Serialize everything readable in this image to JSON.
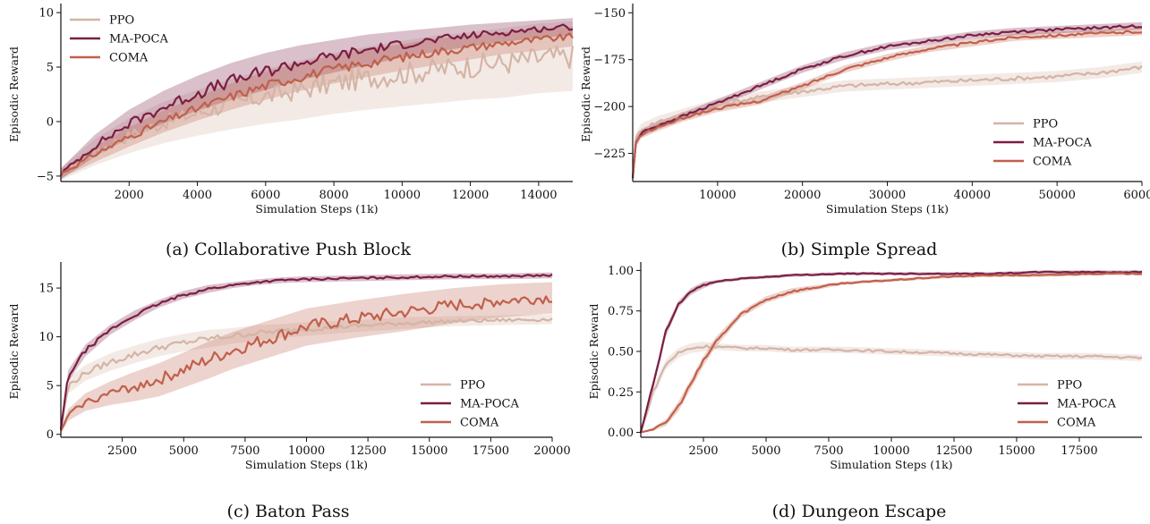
{
  "colors": {
    "PPO": "#d4b4a6",
    "MA-POCA": "#7b1e44",
    "COMA": "#c0604c"
  },
  "chart_data": [
    {
      "type": "line",
      "caption": "(a) Collaborative Push Block",
      "xlabel": "Simulation Steps (1k)",
      "ylabel": "Episodic Reward",
      "xlim": [
        0,
        15000
      ],
      "ylim": [
        -5.5,
        10.5
      ],
      "xticks": [
        2000,
        4000,
        6000,
        8000,
        10000,
        12000,
        14000
      ],
      "yticks": [
        -5,
        0,
        5,
        10
      ],
      "legend_position": "top-left",
      "series": [
        {
          "name": "PPO",
          "x": [
            0,
            1000,
            2000,
            3000,
            4000,
            5000,
            6000,
            7000,
            8000,
            9000,
            10000,
            11000,
            12000,
            13000,
            14000,
            15000
          ],
          "y": [
            -4.8,
            -2.8,
            -1.3,
            -0.1,
            0.8,
            1.6,
            2.3,
            2.9,
            3.5,
            4.0,
            4.4,
            4.8,
            5.1,
            5.4,
            5.8,
            6.0
          ],
          "band": [
            0.6,
            1.2,
            1.6,
            1.9,
            2.1,
            2.3,
            2.5,
            2.7,
            2.8,
            2.9,
            3.0,
            3.1,
            3.1,
            3.2,
            3.2,
            3.2
          ]
        },
        {
          "name": "MA-POCA",
          "x": [
            0,
            1000,
            2000,
            3000,
            4000,
            5000,
            6000,
            7000,
            8000,
            9000,
            10000,
            11000,
            12000,
            13000,
            14000,
            15000
          ],
          "y": [
            -4.8,
            -2.2,
            -0.2,
            1.3,
            2.6,
            3.7,
            4.6,
            5.4,
            6.0,
            6.6,
            7.1,
            7.5,
            7.9,
            8.2,
            8.5,
            8.7
          ],
          "band": [
            0.5,
            1.0,
            1.3,
            1.5,
            1.6,
            1.7,
            1.7,
            1.6,
            1.5,
            1.4,
            1.2,
            1.1,
            1.0,
            0.9,
            0.8,
            0.8
          ]
        },
        {
          "name": "COMA",
          "x": [
            0,
            1000,
            2000,
            3000,
            4000,
            5000,
            6000,
            7000,
            8000,
            9000,
            10000,
            11000,
            12000,
            13000,
            14000,
            15000
          ],
          "y": [
            -4.8,
            -3.0,
            -1.4,
            0.0,
            1.2,
            2.3,
            3.3,
            4.1,
            4.8,
            5.4,
            5.9,
            6.4,
            6.8,
            7.2,
            7.5,
            7.8
          ],
          "band": [
            0.4,
            0.7,
            0.9,
            1.0,
            1.1,
            1.2,
            1.3,
            1.3,
            1.3,
            1.3,
            1.2,
            1.2,
            1.1,
            1.0,
            1.0,
            0.9
          ]
        }
      ]
    },
    {
      "type": "line",
      "caption": "(b) Simple Spread",
      "xlabel": "Simulation Steps (1k)",
      "ylabel": "Episodic Reward",
      "xlim": [
        0,
        60000
      ],
      "ylim": [
        -240,
        -147
      ],
      "xticks": [
        10000,
        20000,
        30000,
        40000,
        50000,
        60000
      ],
      "yticks": [
        -225,
        -200,
        -175,
        -150
      ],
      "legend_position": "bottom-right",
      "series": [
        {
          "name": "PPO",
          "x": [
            0,
            300,
            1000,
            3000,
            6000,
            10000,
            15000,
            20000,
            25000,
            30000,
            35000,
            40000,
            45000,
            50000,
            55000,
            60000
          ],
          "y": [
            -238,
            -218,
            -212,
            -208,
            -204,
            -199,
            -195,
            -192,
            -189,
            -188,
            -187,
            -186,
            -185,
            -184,
            -182,
            -179
          ],
          "band": [
            2,
            3,
            3,
            3,
            3,
            3,
            3,
            3,
            3,
            3,
            3,
            3,
            3,
            3,
            3,
            3
          ]
        },
        {
          "name": "MA-POCA",
          "x": [
            0,
            300,
            1000,
            3000,
            6000,
            10000,
            15000,
            20000,
            25000,
            30000,
            35000,
            40000,
            45000,
            50000,
            55000,
            60000
          ],
          "y": [
            -238,
            -220,
            -214,
            -210,
            -205,
            -198,
            -189,
            -180,
            -173,
            -168,
            -165,
            -162,
            -160,
            -159,
            -158,
            -157
          ],
          "band": [
            2,
            2,
            2,
            2,
            2,
            2,
            2,
            2,
            2,
            2,
            2,
            2,
            2,
            2,
            2,
            2
          ]
        },
        {
          "name": "COMA",
          "x": [
            0,
            300,
            1000,
            3000,
            6000,
            10000,
            15000,
            20000,
            25000,
            30000,
            35000,
            40000,
            45000,
            50000,
            55000,
            60000
          ],
          "y": [
            -238,
            -220,
            -215,
            -211,
            -206,
            -201,
            -197,
            -189,
            -180,
            -174,
            -169,
            -166,
            -163,
            -162,
            -161,
            -160
          ],
          "band": [
            2,
            2,
            2,
            2,
            2,
            2,
            2,
            2,
            2,
            2,
            2,
            2,
            2,
            2,
            2,
            2
          ]
        }
      ]
    },
    {
      "type": "line",
      "caption": "(c) Baton Pass",
      "xlabel": "Simulation Steps (1k)",
      "ylabel": "Episodic Reward",
      "xlim": [
        0,
        20000
      ],
      "ylim": [
        -0.3,
        17.3
      ],
      "xticks": [
        2500,
        5000,
        7500,
        10000,
        12500,
        15000,
        17500,
        20000
      ],
      "yticks": [
        0,
        5,
        10,
        15
      ],
      "legend_position": "bottom-right",
      "series": [
        {
          "name": "PPO",
          "x": [
            0,
            300,
            1000,
            2000,
            3000,
            4000,
            5000,
            6000,
            7000,
            8000,
            9000,
            10000,
            12000,
            14000,
            16000,
            18000,
            20000
          ],
          "y": [
            0.5,
            5.0,
            6.3,
            7.4,
            8.2,
            8.9,
            9.4,
            9.8,
            10.1,
            10.4,
            10.6,
            10.8,
            11.1,
            11.4,
            11.6,
            11.7,
            11.8
          ],
          "band": [
            0.4,
            0.8,
            0.8,
            0.9,
            0.9,
            0.9,
            0.9,
            0.9,
            0.8,
            0.8,
            0.7,
            0.7,
            0.6,
            0.6,
            0.5,
            0.5,
            0.5
          ]
        },
        {
          "name": "MA-POCA",
          "x": [
            0,
            300,
            1000,
            2000,
            3000,
            4000,
            5000,
            6000,
            7000,
            8000,
            9000,
            10000,
            12000,
            14000,
            16000,
            18000,
            20000
          ],
          "y": [
            0.5,
            6.0,
            8.6,
            10.7,
            12.2,
            13.4,
            14.3,
            14.9,
            15.3,
            15.6,
            15.8,
            15.9,
            16.0,
            16.1,
            16.2,
            16.2,
            16.3
          ],
          "band": [
            0.3,
            0.6,
            0.6,
            0.5,
            0.5,
            0.4,
            0.4,
            0.4,
            0.3,
            0.3,
            0.3,
            0.3,
            0.3,
            0.3,
            0.3,
            0.3,
            0.3
          ]
        },
        {
          "name": "COMA",
          "x": [
            0,
            300,
            1000,
            2000,
            3000,
            4000,
            5000,
            6000,
            7000,
            8000,
            9000,
            10000,
            12000,
            14000,
            16000,
            18000,
            20000
          ],
          "y": [
            0.3,
            2.0,
            3.3,
            4.2,
            4.9,
            5.6,
            6.6,
            7.6,
            8.6,
            9.4,
            10.2,
            11.0,
            11.8,
            12.5,
            13.2,
            13.7,
            14.0
          ],
          "band": [
            0.3,
            0.6,
            0.9,
            1.2,
            1.5,
            1.7,
            1.8,
            1.9,
            1.9,
            1.9,
            1.9,
            1.9,
            1.9,
            1.9,
            1.8,
            1.7,
            1.6
          ]
        }
      ]
    },
    {
      "type": "line",
      "caption": "(d) Dungeon Escape",
      "xlabel": "Simulation Steps (1k)",
      "ylabel": "Episodic Reward",
      "xlim": [
        0,
        20000
      ],
      "ylim": [
        -0.03,
        1.03
      ],
      "xticks": [
        2500,
        5000,
        7500,
        10000,
        12500,
        15000,
        17500
      ],
      "yticks": [
        0.0,
        0.25,
        0.5,
        0.75,
        1.0
      ],
      "legend_position": "bottom-right",
      "series": [
        {
          "name": "PPO",
          "x": [
            0,
            500,
            1000,
            1500,
            2000,
            2500,
            3000,
            4000,
            5000,
            6000,
            8000,
            10000,
            12000,
            14000,
            16000,
            18000,
            20000
          ],
          "y": [
            0.0,
            0.25,
            0.42,
            0.49,
            0.52,
            0.53,
            0.53,
            0.52,
            0.52,
            0.51,
            0.51,
            0.5,
            0.49,
            0.48,
            0.47,
            0.47,
            0.46
          ],
          "band": [
            0.01,
            0.03,
            0.03,
            0.03,
            0.03,
            0.03,
            0.02,
            0.02,
            0.02,
            0.02,
            0.02,
            0.02,
            0.02,
            0.02,
            0.02,
            0.02,
            0.02
          ]
        },
        {
          "name": "MA-POCA",
          "x": [
            0,
            500,
            1000,
            1500,
            2000,
            2500,
            3000,
            4000,
            5000,
            6000,
            8000,
            10000,
            12000,
            14000,
            16000,
            18000,
            20000
          ],
          "y": [
            0.0,
            0.3,
            0.62,
            0.79,
            0.87,
            0.91,
            0.93,
            0.95,
            0.96,
            0.97,
            0.98,
            0.98,
            0.98,
            0.98,
            0.99,
            0.99,
            0.99
          ],
          "band": [
            0.01,
            0.03,
            0.03,
            0.02,
            0.02,
            0.02,
            0.01,
            0.01,
            0.01,
            0.01,
            0.01,
            0.01,
            0.01,
            0.01,
            0.01,
            0.01,
            0.01
          ]
        },
        {
          "name": "COMA",
          "x": [
            0,
            500,
            1000,
            1500,
            2000,
            2500,
            3000,
            4000,
            5000,
            6000,
            8000,
            10000,
            12000,
            14000,
            16000,
            18000,
            20000
          ],
          "y": [
            0.0,
            0.02,
            0.06,
            0.16,
            0.3,
            0.44,
            0.56,
            0.73,
            0.82,
            0.87,
            0.92,
            0.94,
            0.96,
            0.97,
            0.97,
            0.98,
            0.98
          ],
          "band": [
            0.0,
            0.01,
            0.02,
            0.03,
            0.03,
            0.03,
            0.03,
            0.02,
            0.02,
            0.02,
            0.01,
            0.01,
            0.01,
            0.01,
            0.01,
            0.01,
            0.01
          ]
        }
      ]
    }
  ]
}
